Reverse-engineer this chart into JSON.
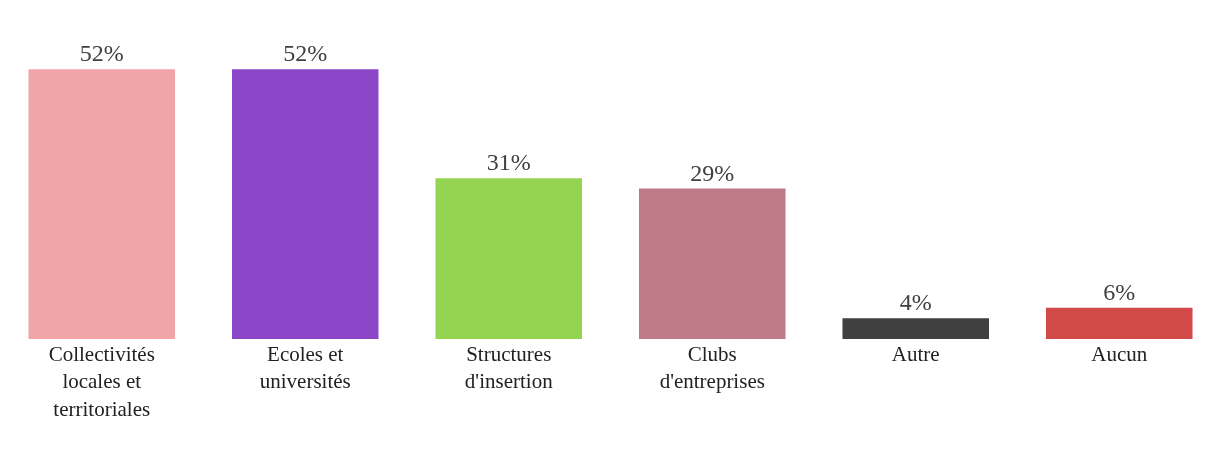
{
  "chart_data": {
    "type": "bar",
    "categories": [
      "Collectivités locales et territoriales",
      "Ecoles et universités",
      "Structures d'insertion",
      "Clubs d'entreprises",
      "Autre",
      "Aucun"
    ],
    "values": [
      52,
      52,
      31,
      29,
      4,
      6
    ],
    "value_labels": [
      "52%",
      "52%",
      "31%",
      "29%",
      "4%",
      "6%"
    ],
    "colors": [
      "#f2a5a8",
      "#8b47c8",
      "#94d451",
      "#bf7a87",
      "#404040",
      "#d24a47"
    ]
  }
}
